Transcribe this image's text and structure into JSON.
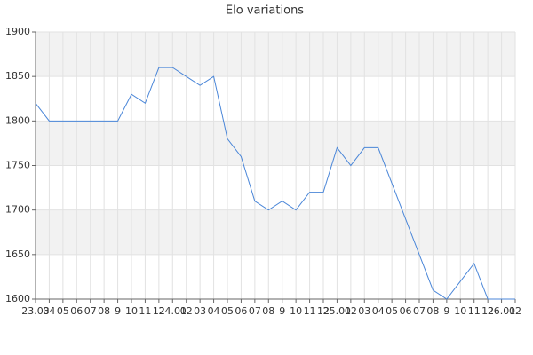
{
  "chart_data": {
    "type": "line",
    "title": "Elo variations",
    "categories": [
      "23.03",
      "04",
      "05",
      "06",
      "07",
      "08",
      "9",
      "10",
      "11",
      "12",
      "24.01",
      "02",
      "03",
      "04",
      "05",
      "06",
      "07",
      "08",
      "9",
      "10",
      "11",
      "12",
      "25.01",
      "02",
      "03",
      "04",
      "05",
      "06",
      "07",
      "08",
      "9",
      "10",
      "11",
      "12",
      "26.01",
      "02"
    ],
    "series": [
      {
        "name": "Elo",
        "color": "#4a86d8",
        "values": [
          1820,
          1800,
          1800,
          1800,
          1800,
          1800,
          1800,
          1830,
          1820,
          1860,
          1860,
          1850,
          1840,
          1850,
          1780,
          1760,
          1710,
          1700,
          1710,
          1700,
          1720,
          1720,
          1770,
          1750,
          1770,
          1770,
          1730,
          1690,
          1650,
          1610,
          1600,
          1620,
          1640,
          1600,
          1600,
          1600
        ]
      }
    ],
    "ylim": [
      1600,
      1900
    ],
    "yticks": [
      1600,
      1650,
      1700,
      1750,
      1800,
      1850,
      1900
    ],
    "grid": true
  }
}
